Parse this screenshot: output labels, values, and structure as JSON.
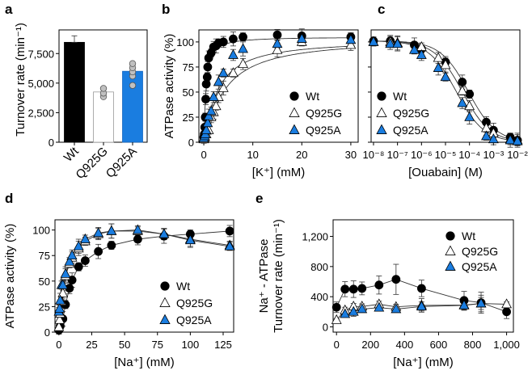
{
  "colors": {
    "wt": "#000000",
    "q925g": "#ffffff",
    "q925a": "#1a7de0",
    "dot": "#c0c0c0",
    "fit": "#333333"
  },
  "chart_data": [
    {
      "panel": "a",
      "type": "bar",
      "title": "",
      "xlabel": "",
      "ylabel": "Turnover rate (min⁻¹)",
      "ylim": [
        0,
        9500
      ],
      "yticks": [
        0,
        2500,
        5000,
        7500
      ],
      "ytick_labels": [
        "0",
        "2,500",
        "5,000",
        "7,500"
      ],
      "categories": [
        "Wt",
        "Q925G",
        "Q925A"
      ],
      "values": [
        8450,
        4250,
        6000
      ],
      "errors": [
        550,
        400,
        600
      ],
      "fills": [
        "#000000",
        "#ffffff",
        "#1a7de0"
      ],
      "individual_points": [
        [],
        [
          3850,
          4150,
          4550
        ],
        [
          4800,
          5600,
          5950,
          6300,
          6650
        ]
      ]
    },
    {
      "panel": "b",
      "type": "scatter",
      "xlabel": "[K⁺] (mM)",
      "ylabel": "ATPase activity (%)",
      "xlim": [
        -1,
        31.5
      ],
      "ylim": [
        0,
        112
      ],
      "xticks": [
        0,
        10,
        20,
        30
      ],
      "yticks": [
        0,
        25,
        50,
        75,
        100
      ],
      "legend": "center-right",
      "series": [
        {
          "name": "Wt",
          "marker": "circle",
          "x": [
            0,
            0.1,
            0.2,
            0.3,
            0.4,
            0.5,
            0.7,
            0.8,
            1,
            1.5,
            2,
            2.5,
            3,
            4,
            6,
            8,
            15,
            20,
            30
          ],
          "y": [
            5,
            8,
            15,
            25,
            43,
            58,
            65,
            75,
            84,
            89,
            95,
            96,
            99,
            100,
            103,
            105,
            107,
            106,
            105
          ],
          "fit_k": 0.45
        },
        {
          "name": "Q925G",
          "marker": "triangle-open",
          "x": [
            0,
            0.2,
            0.5,
            1,
            1.5,
            2,
            2.5,
            3,
            4,
            6,
            8,
            15,
            20,
            30
          ],
          "y": [
            3,
            5,
            8,
            12,
            25,
            30,
            36,
            45,
            54,
            69,
            78,
            92,
            100,
            97
          ],
          "fit_k": 4.2
        },
        {
          "name": "Q925A",
          "marker": "triangle-filled",
          "x": [
            0,
            0.2,
            0.3,
            0.5,
            0.8,
            1,
            1.5,
            2,
            3,
            4,
            6,
            8,
            15,
            20,
            30
          ],
          "y": [
            4,
            6,
            8,
            12,
            19,
            26,
            31,
            45,
            60,
            69,
            87,
            93,
            98,
            103,
            102
          ],
          "fit_k": 2.8
        }
      ]
    },
    {
      "panel": "c",
      "type": "scatter",
      "xlabel": "[Ouabain] (M)",
      "ylabel": "",
      "xscale": "log",
      "xlim_log10": [
        -8.1,
        -1.9
      ],
      "ylim": [
        0,
        112
      ],
      "xticks_log10": [
        -8,
        -7,
        -6,
        -5,
        -4,
        -3,
        -2
      ],
      "xtick_labels": [
        "10⁻⁸",
        "10⁻⁷",
        "10⁻⁶",
        "10⁻⁵",
        "10⁻⁴",
        "10⁻³",
        "10⁻²"
      ],
      "yticks": [
        0,
        25,
        50,
        75,
        100
      ],
      "legend": "center-left",
      "series": [
        {
          "name": "Wt",
          "marker": "circle",
          "log10x": [
            -8,
            -7.3,
            -6.3,
            -6,
            -5,
            -4.3,
            -4,
            -3.3,
            -3,
            -2.3,
            -2
          ],
          "y": [
            101,
            101,
            97,
            93,
            80,
            60,
            48,
            20,
            12,
            5,
            2
          ]
        },
        {
          "name": "Q925G",
          "marker": "triangle-open",
          "log10x": [
            -8,
            -7.3,
            -7,
            -6,
            -5.3,
            -5,
            -4.3,
            -4,
            -3.3,
            -3,
            -2.3,
            -2
          ],
          "y": [
            100,
            100,
            99,
            95,
            84,
            77,
            51,
            36,
            14,
            9,
            3,
            2
          ]
        },
        {
          "name": "Q925A",
          "marker": "triangle-filled",
          "log10x": [
            -8,
            -7.3,
            -7,
            -6.3,
            -6,
            -5.3,
            -5,
            -4.3,
            -4,
            -3.3,
            -3,
            -2.3,
            -2
          ],
          "y": [
            100,
            98,
            98,
            92,
            87,
            74,
            65,
            39,
            25,
            6,
            3,
            2,
            1
          ]
        }
      ]
    },
    {
      "panel": "d",
      "type": "scatter",
      "xlabel": "[Na⁺] (mM)",
      "ylabel": "ATPase activity (%)",
      "xlim": [
        -3,
        133
      ],
      "ylim": [
        0,
        110
      ],
      "xticks": [
        0,
        25,
        50,
        75,
        100,
        125
      ],
      "yticks": [
        0,
        25,
        50,
        75,
        100
      ],
      "legend": "lower-right",
      "series": [
        {
          "name": "Wt",
          "marker": "circle",
          "x": [
            0,
            1,
            3,
            5,
            8,
            10,
            15,
            20,
            30,
            40,
            60,
            80,
            100,
            130
          ],
          "y": [
            2,
            6,
            13,
            27,
            43,
            51,
            64,
            70,
            79,
            85,
            91,
            94,
            96,
            99
          ]
        },
        {
          "name": "Q925G",
          "marker": "triangle-open",
          "x": [
            0,
            0.5,
            1,
            2,
            3,
            5,
            8,
            10,
            15,
            20,
            30,
            40,
            60,
            80,
            100,
            130
          ],
          "y": [
            5,
            12,
            18,
            30,
            38,
            55,
            67,
            73,
            82,
            89,
            96,
            99,
            99,
            96,
            91,
            85
          ]
        },
        {
          "name": "Q925A",
          "marker": "triangle-filled",
          "x": [
            0,
            0.5,
            1,
            2,
            3,
            5,
            8,
            10,
            15,
            20,
            30,
            40,
            60,
            80,
            100,
            130
          ],
          "y": [
            20,
            23,
            31,
            46,
            46,
            57,
            69,
            75,
            84,
            91,
            97,
            99,
            100,
            96,
            90,
            84
          ]
        }
      ]
    },
    {
      "panel": "e",
      "type": "line",
      "xlabel": "[Na⁺] (mM)",
      "ylabel": "Na⁺ - ATPase\nTurnover rate (min⁻¹)",
      "xlim": [
        -20,
        1040
      ],
      "ylim": [
        -70,
        1420
      ],
      "xticks": [
        0,
        200,
        400,
        600,
        800,
        1000
      ],
      "xtick_labels": [
        "0",
        "200",
        "400",
        "600",
        "800",
        "1,000"
      ],
      "yticks": [
        0,
        400,
        800,
        1200
      ],
      "ytick_labels": [
        "0",
        "400",
        "800",
        "1,200"
      ],
      "legend": "top-right",
      "series": [
        {
          "name": "Wt",
          "marker": "circle",
          "x": [
            0,
            50,
            100,
            150,
            250,
            350,
            500,
            750,
            850,
            1000
          ],
          "y": [
            260,
            500,
            500,
            510,
            555,
            630,
            510,
            350,
            320,
            200
          ],
          "err": [
            70,
            100,
            110,
            85,
            120,
            200,
            110,
            120,
            140,
            90
          ]
        },
        {
          "name": "Q925G",
          "marker": "triangle-open",
          "x": [
            0,
            50,
            100,
            150,
            250,
            350,
            500,
            750,
            850,
            1000
          ],
          "y": [
            90,
            220,
            270,
            270,
            300,
            265,
            285,
            290,
            310,
            300
          ],
          "err": [
            20,
            40,
            40,
            35,
            40,
            35,
            90,
            70,
            80,
            30
          ]
        },
        {
          "name": "Q925A",
          "marker": "triangle-filled",
          "x": [
            50,
            100,
            150,
            250,
            350,
            500,
            750,
            850
          ],
          "y": [
            170,
            200,
            235,
            255,
            235,
            270,
            285,
            310
          ],
          "err": [
            30,
            60,
            40,
            30,
            30,
            60,
            60,
            110
          ]
        }
      ]
    }
  ],
  "panels": {
    "a": {
      "letter": "a"
    },
    "b": {
      "letter": "b"
    },
    "c": {
      "letter": "c"
    },
    "d": {
      "letter": "d"
    },
    "e": {
      "letter": "e"
    }
  },
  "legend_labels": [
    "Wt",
    "Q925G",
    "Q925A"
  ]
}
